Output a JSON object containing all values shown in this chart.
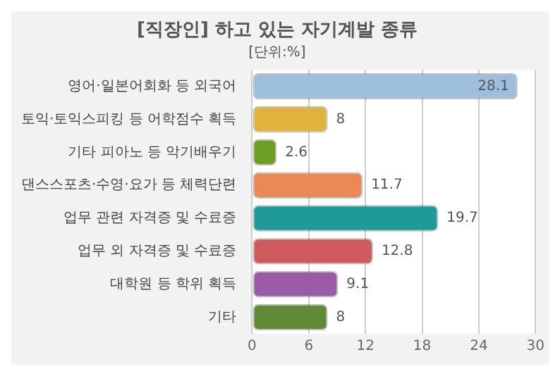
{
  "chart_data": {
    "type": "bar",
    "orientation": "horizontal",
    "title": "[직장인] 하고 있는 자기계발 종류",
    "subtitle": "[단위:%]",
    "categories": [
      "영어·일본어회화 등 외국어",
      "토익·토익스피킹 등 어학점수 획득",
      "기타 피아노 등 악기배우기",
      "댄스스포츠·수영·요가 등 체력단련",
      "업무 관련 자격증 및 수료증",
      "업무 외 자격증 및 수료증",
      "대학원 등 학위 획득",
      "기타"
    ],
    "values": [
      28.1,
      8,
      2.6,
      11.7,
      19.7,
      12.8,
      9.1,
      8
    ],
    "colors": [
      "#9dbfdc",
      "#e2b33a",
      "#6e9e22",
      "#e98a55",
      "#1f9a9a",
      "#cf5a5e",
      "#9a5aa6",
      "#5f8a36"
    ],
    "xlim": [
      0,
      30
    ],
    "xticks": [
      0,
      6,
      12,
      18,
      24,
      30
    ],
    "grid": "x",
    "data_labels": true,
    "legend": false
  }
}
